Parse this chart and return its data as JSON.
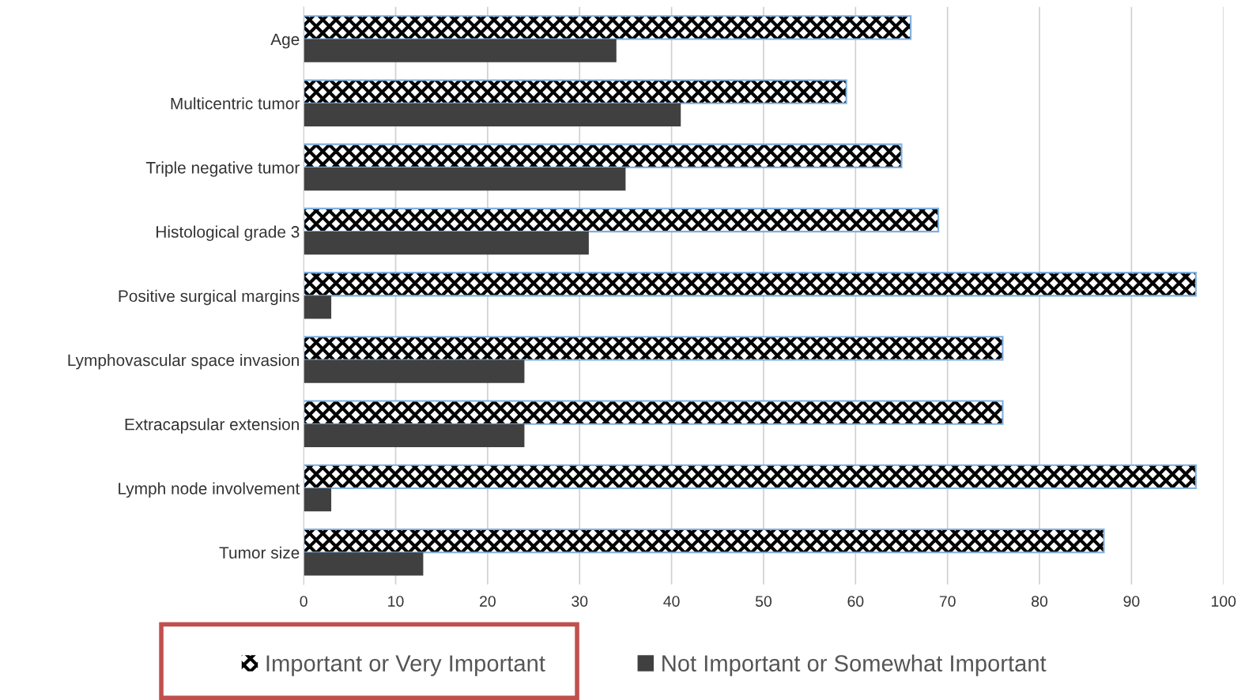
{
  "chart_data": {
    "type": "bar",
    "orientation": "horizontal",
    "categories": [
      "Age",
      "Multicentric tumor",
      "Triple negative tumor",
      "Histological grade 3",
      "Positive surgical margins",
      "Lymphovascular space invasion",
      "Extracapsular extension",
      "Lymph node involvement",
      "Tumor size"
    ],
    "series": [
      {
        "name": "Important or Very Important",
        "color": "#000000",
        "values": [
          66,
          59,
          65,
          69,
          97,
          76,
          76,
          97,
          87
        ]
      },
      {
        "name": "Not Important or Somewhat Important",
        "color": "#404040",
        "values": [
          34,
          41,
          35,
          31,
          3,
          24,
          24,
          3,
          13
        ]
      }
    ],
    "xlim": [
      0,
      100
    ],
    "xticks": [
      0,
      10,
      20,
      30,
      40,
      50,
      60,
      70,
      80,
      90,
      100
    ],
    "grid": "x",
    "legend": "bottom"
  }
}
